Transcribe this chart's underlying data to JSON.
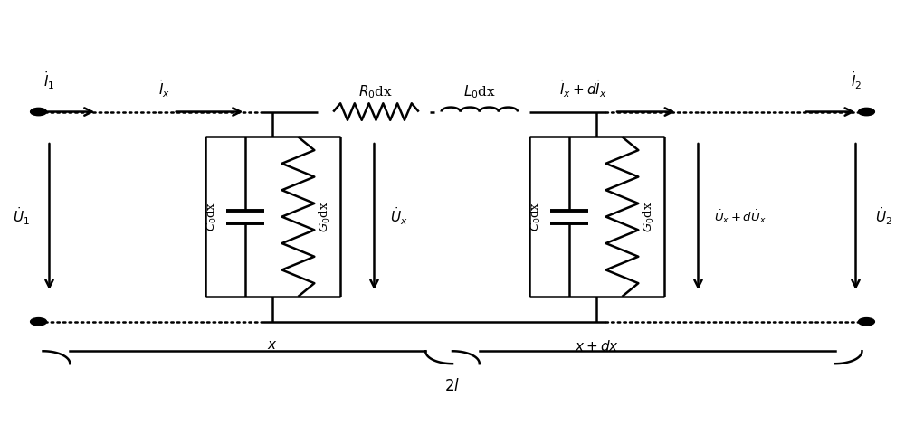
{
  "fig_width": 10.0,
  "fig_height": 4.7,
  "dpi": 100,
  "bg_color": "#ffffff",
  "line_color": "#000000",
  "line_width": 1.8,
  "labels": {
    "I1": "$\\dot{I}_1$",
    "I2": "$\\dot{I}_2$",
    "Ix": "$\\dot{I}_x$",
    "IxdIx": "$\\dot{I}_x+d\\dot{I}_x$",
    "R0dx": "$R_0$dx",
    "L0dx": "$L_0$dx",
    "C0dx_left": "$C_0$dx",
    "G0dx_left": "$G_0$dx",
    "C0dx_right": "$C_0$dx",
    "G0dx_right": "$G_0$dx",
    "Ux": "$\\dot{U}_x$",
    "UxdUx": "$\\dot{U}_x+d\\dot{U}_x$",
    "U1": "$\\dot{U}_1$",
    "U2": "$\\dot{U}_2$",
    "x_label": "$x$",
    "xdx": "$x+dx$",
    "twol": "$2l$"
  }
}
